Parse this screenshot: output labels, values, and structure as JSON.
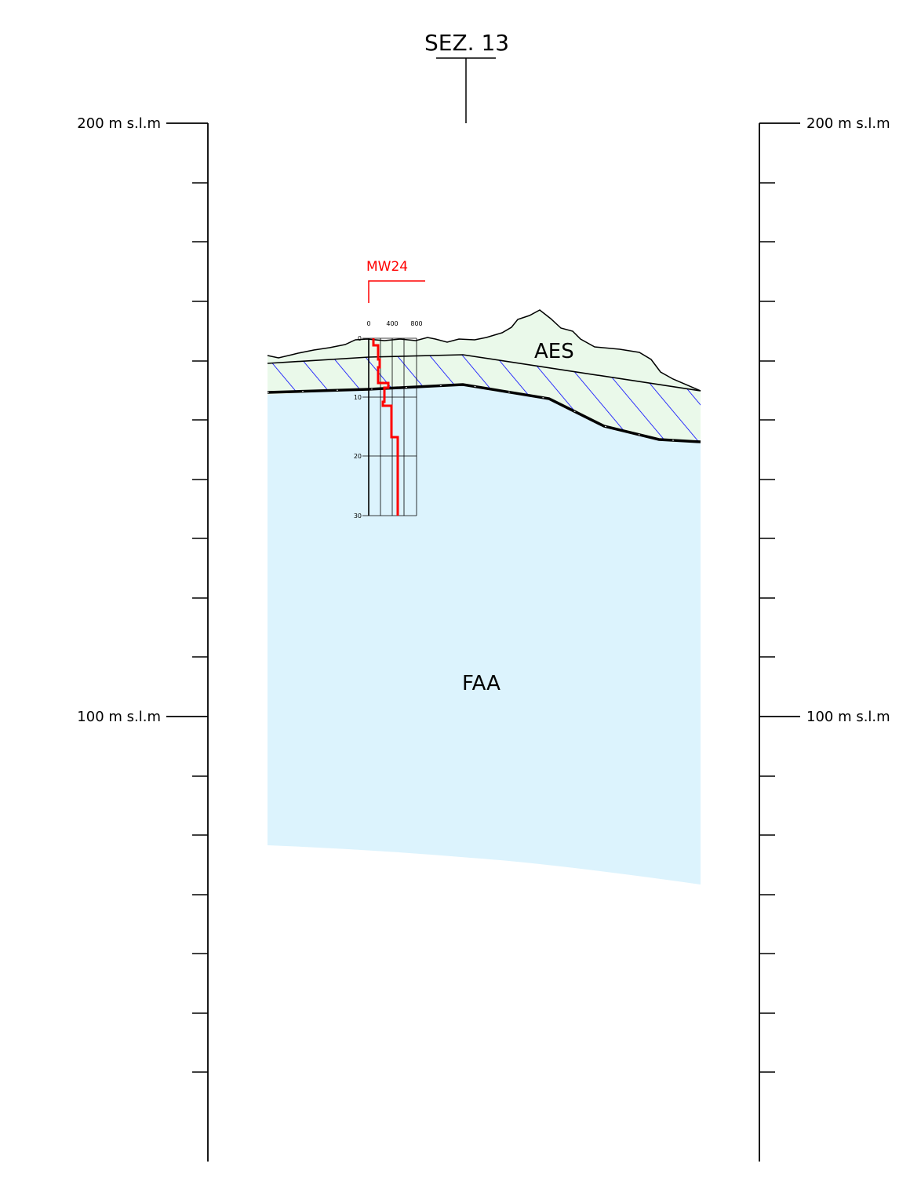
{
  "title": "SEZ. 13",
  "scale": {
    "top_label": "200 m s.l.m",
    "mid_label": "100 m s.l.m"
  },
  "units": {
    "upper": "AES",
    "lower": "FAA"
  },
  "well": {
    "name": "MW24",
    "x_ticks": [
      "0",
      "400",
      "800"
    ],
    "depth_ticks": [
      "0",
      "10",
      "20",
      "30"
    ]
  },
  "colors": {
    "aes_fill": "#eaf9ea",
    "faa_fill": "#dcf3fd",
    "hatch": "#0000ff",
    "well": "#ff0000"
  }
}
